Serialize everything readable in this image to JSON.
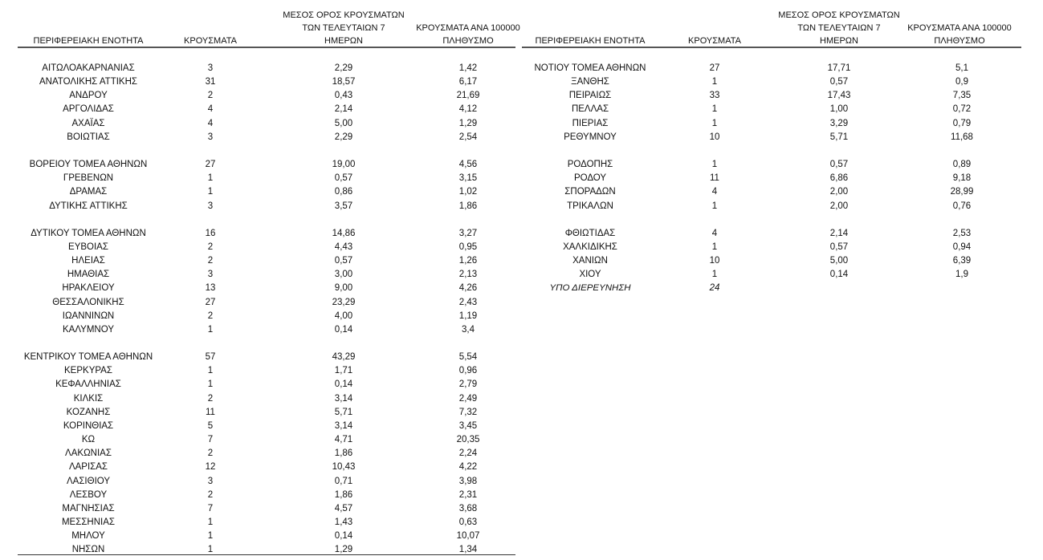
{
  "headers": {
    "region": "ΠΕΡΙΦΕΡΕΙΑΚΗ ΕΝΟΤΗΤΑ",
    "cases": "ΚΡΟΥΣΜΑΤΑ",
    "avg_line1": "ΜΕΣΟΣ ΟΡΟΣ ΚΡΟΥΣΜΑΤΩΝ",
    "avg_line2": "ΤΩΝ ΤΕΛΕΥΤΑΙΩΝ 7",
    "avg_line3": "ΗΜΕΡΩΝ",
    "per100k_line1": "ΚΡΟΥΣΜΑΤΑ ΑΝΑ 100000",
    "per100k_line2": "ΠΛΗΘΥΣΜΟ"
  },
  "left_groups": [
    [
      [
        "ΑΙΤΩΛΟΑΚΑΡΝΑΝΙΑΣ",
        "3",
        "2,29",
        "1,42"
      ],
      [
        "ΑΝΑΤΟΛΙΚΗΣ ΑΤΤΙΚΗΣ",
        "31",
        "18,57",
        "6,17"
      ],
      [
        "ΑΝΔΡΟΥ",
        "2",
        "0,43",
        "21,69"
      ],
      [
        "ΑΡΓΟΛΙΔΑΣ",
        "4",
        "2,14",
        "4,12"
      ],
      [
        "ΑΧΑΪΑΣ",
        "4",
        "5,00",
        "1,29"
      ],
      [
        "ΒΟΙΩΤΙΑΣ",
        "3",
        "2,29",
        "2,54"
      ]
    ],
    [
      [
        "ΒΟΡΕΙΟΥ ΤΟΜΕΑ ΑΘΗΝΩΝ",
        "27",
        "19,00",
        "4,56"
      ],
      [
        "ΓΡΕΒΕΝΩΝ",
        "1",
        "0,57",
        "3,15"
      ],
      [
        "ΔΡΑΜΑΣ",
        "1",
        "0,86",
        "1,02"
      ],
      [
        "ΔΥΤΙΚΗΣ ΑΤΤΙΚΗΣ",
        "3",
        "3,57",
        "1,86"
      ]
    ],
    [
      [
        "ΔΥΤΙΚΟΥ ΤΟΜΕΑ ΑΘΗΝΩΝ",
        "16",
        "14,86",
        "3,27"
      ],
      [
        "ΕΥΒΟΙΑΣ",
        "2",
        "4,43",
        "0,95"
      ],
      [
        "ΗΛΕΙΑΣ",
        "2",
        "0,57",
        "1,26"
      ],
      [
        "ΗΜΑΘΙΑΣ",
        "3",
        "3,00",
        "2,13"
      ],
      [
        "ΗΡΑΚΛΕΙΟΥ",
        "13",
        "9,00",
        "4,26"
      ],
      [
        "ΘΕΣΣΑΛΟΝΙΚΗΣ",
        "27",
        "23,29",
        "2,43"
      ],
      [
        "ΙΩΑΝΝΙΝΩΝ",
        "2",
        "4,00",
        "1,19"
      ],
      [
        "ΚΑΛΥΜΝΟΥ",
        "1",
        "0,14",
        "3,4"
      ]
    ],
    [
      [
        "ΚΕΝΤΡΙΚΟΥ ΤΟΜΕΑ ΑΘΗΝΩΝ",
        "57",
        "43,29",
        "5,54"
      ],
      [
        "ΚΕΡΚΥΡΑΣ",
        "1",
        "1,71",
        "0,96"
      ],
      [
        "ΚΕΦΑΛΛΗΝΙΑΣ",
        "1",
        "0,14",
        "2,79"
      ],
      [
        "ΚΙΛΚΙΣ",
        "2",
        "3,14",
        "2,49"
      ],
      [
        "ΚΟΖΑΝΗΣ",
        "11",
        "5,71",
        "7,32"
      ],
      [
        "ΚΟΡΙΝΘΙΑΣ",
        "5",
        "3,14",
        "3,45"
      ],
      [
        "ΚΩ",
        "7",
        "4,71",
        "20,35"
      ],
      [
        "ΛΑΚΩΝΙΑΣ",
        "2",
        "1,86",
        "2,24"
      ],
      [
        "ΛΑΡΙΣΑΣ",
        "12",
        "10,43",
        "4,22"
      ],
      [
        "ΛΑΣΙΘΙΟΥ",
        "3",
        "0,71",
        "3,98"
      ],
      [
        "ΛΕΣΒΟΥ",
        "2",
        "1,86",
        "2,31"
      ],
      [
        "ΜΑΓΝΗΣΙΑΣ",
        "7",
        "4,57",
        "3,68"
      ],
      [
        "ΜΕΣΣΗΝΙΑΣ",
        "1",
        "1,43",
        "0,63"
      ],
      [
        "ΜΗΛΟΥ",
        "1",
        "0,14",
        "10,07"
      ],
      [
        "ΝΗΣΩΝ",
        "1",
        "1,29",
        "1,34"
      ]
    ]
  ],
  "right_groups": [
    [
      [
        "ΝΟΤΙΟΥ ΤΟΜΕΑ ΑΘΗΝΩΝ",
        "27",
        "17,71",
        "5,1"
      ],
      [
        "ΞΑΝΘΗΣ",
        "1",
        "0,57",
        "0,9"
      ],
      [
        "ΠΕΙΡΑΙΩΣ",
        "33",
        "17,43",
        "7,35"
      ],
      [
        "ΠΕΛΛΑΣ",
        "1",
        "1,00",
        "0,72"
      ],
      [
        "ΠΙΕΡΙΑΣ",
        "1",
        "3,29",
        "0,79"
      ],
      [
        "ΡΕΘΥΜΝΟΥ",
        "10",
        "5,71",
        "11,68"
      ]
    ],
    [
      [
        "ΡΟΔΟΠΗΣ",
        "1",
        "0,57",
        "0,89"
      ],
      [
        "ΡΟΔΟΥ",
        "11",
        "6,86",
        "9,18"
      ],
      [
        "ΣΠΟΡΑΔΩΝ",
        "4",
        "2,00",
        "28,99"
      ],
      [
        "ΤΡΙΚΑΛΩΝ",
        "1",
        "2,00",
        "0,76"
      ]
    ],
    [
      [
        "ΦΘΙΩΤΙΔΑΣ",
        "4",
        "2,14",
        "2,53"
      ],
      [
        "ΧΑΛΚΙΔΙΚΗΣ",
        "1",
        "0,57",
        "0,94"
      ],
      [
        "ΧΑΝΙΩΝ",
        "10",
        "5,00",
        "6,39"
      ],
      [
        "ΧΙΟΥ",
        "1",
        "0,14",
        "1,9"
      ]
    ]
  ],
  "under_investigation": {
    "label": "ΥΠΟ ΔΙΕΡΕΥΝΗΣΗ",
    "cases": "24"
  }
}
